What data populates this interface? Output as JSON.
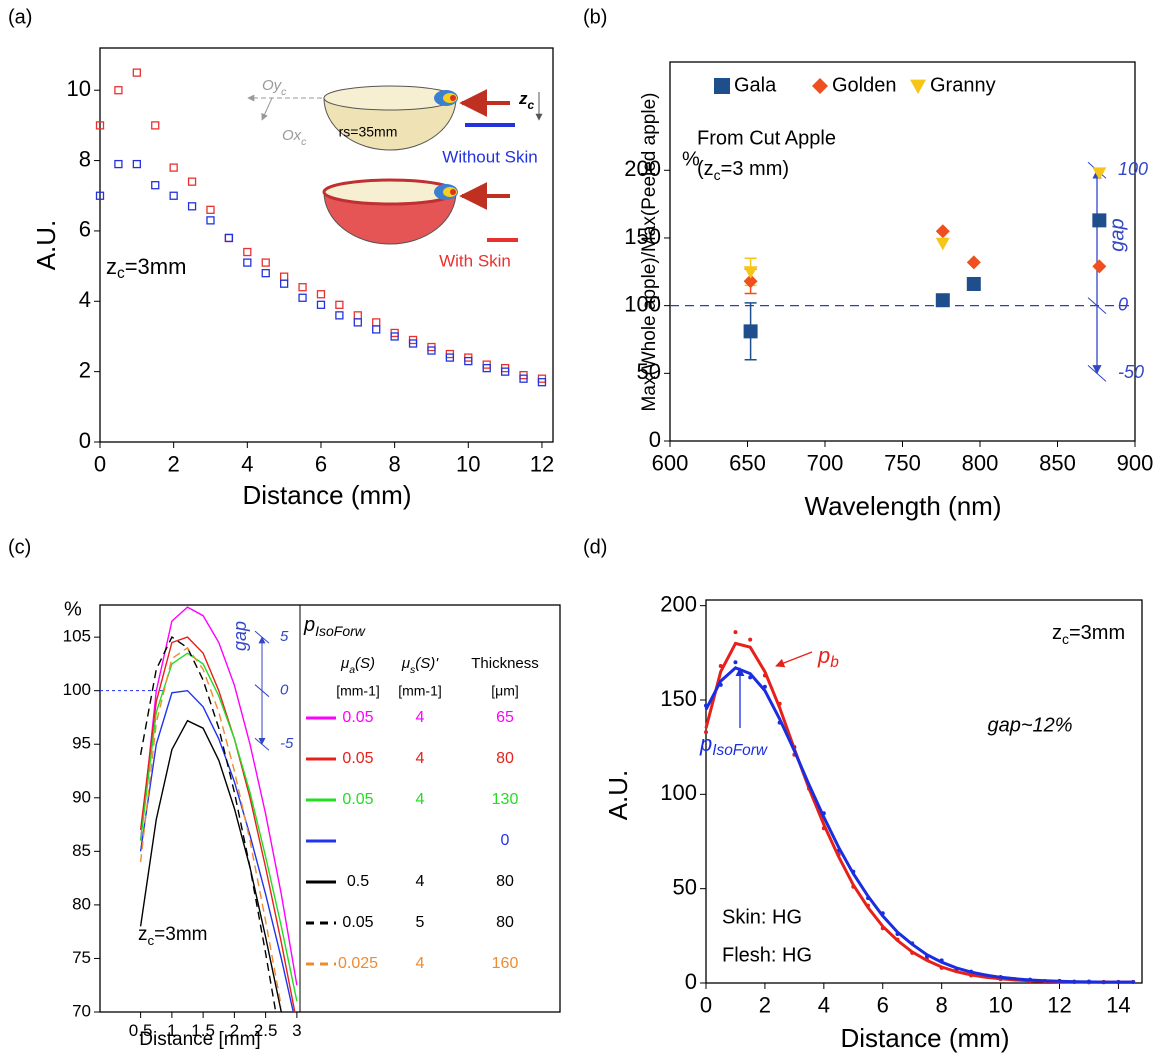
{
  "chart_data": [
    {
      "type": "scatter",
      "panel_label": "(a)",
      "xlabel": "Distance (mm)",
      "ylabel": "A.U.",
      "x": [
        0,
        0.5,
        1,
        1.5,
        2,
        2.5,
        3,
        3.5,
        4,
        4.5,
        5,
        5.5,
        6,
        6.5,
        7,
        7.5,
        8,
        8.5,
        9,
        9.5,
        10,
        10.5,
        11,
        11.5,
        12
      ],
      "series": [
        {
          "name": "With Skin",
          "color": "#e8312f",
          "values": [
            9.0,
            10.0,
            10.5,
            9.0,
            7.8,
            7.4,
            6.6,
            5.8,
            5.4,
            5.1,
            4.7,
            4.4,
            4.2,
            3.9,
            3.6,
            3.4,
            3.1,
            2.9,
            2.7,
            2.5,
            2.4,
            2.2,
            2.1,
            1.9,
            1.8
          ]
        },
        {
          "name": "Without Skin",
          "color": "#2233dd",
          "values": [
            7.0,
            7.9,
            7.9,
            7.3,
            7.0,
            6.7,
            6.3,
            5.8,
            5.1,
            4.8,
            4.5,
            4.1,
            3.9,
            3.6,
            3.4,
            3.2,
            3.0,
            2.8,
            2.6,
            2.4,
            2.3,
            2.1,
            2.0,
            1.8,
            1.7
          ]
        }
      ],
      "xlim": [
        0,
        12.3
      ],
      "ylim": [
        0,
        11.2
      ],
      "xticks": [
        0,
        2,
        4,
        6,
        8,
        10,
        12
      ],
      "yticks": [
        0,
        2,
        4,
        6,
        8,
        10
      ],
      "annotations": [
        "zc=3mm",
        "rs=35mm",
        "Oyc",
        "Oxc",
        "zc"
      ]
    },
    {
      "type": "scatter",
      "panel_label": "(b)",
      "xlabel": "Wavelength (nm)",
      "ylabel": "Max(Whole apple)/Max(Peeled apple)",
      "y2label": "gap",
      "x": [
        652,
        776,
        796,
        877
      ],
      "series": [
        {
          "name": "Gala",
          "color": "#1f4e8c",
          "marker": "square",
          "values": [
            81,
            104,
            116,
            163
          ],
          "errors": [
            21,
            null,
            null,
            null
          ]
        },
        {
          "name": "Golden",
          "color": "#f04e1f",
          "marker": "diamond",
          "values": [
            118,
            155,
            132,
            129
          ],
          "errors": [
            9,
            null,
            null,
            null
          ]
        },
        {
          "name": "Granny",
          "color": "#f5c518",
          "marker": "triangle-down",
          "values": [
            125,
            146,
            null,
            198
          ],
          "errors": [
            10,
            null,
            null,
            null
          ]
        }
      ],
      "xlim": [
        600,
        900
      ],
      "ylim": [
        0,
        280
      ],
      "xticks": [
        600,
        650,
        700,
        750,
        800,
        850,
        900
      ],
      "yticks": [
        0,
        50,
        100,
        150,
        200
      ],
      "y2lim": [
        -100,
        180
      ],
      "y2ticks": [
        -50,
        0,
        100
      ],
      "reference_line": 100,
      "annotations": [
        "%",
        "From Cut Apple",
        "(zc=3 mm)"
      ]
    },
    {
      "type": "line",
      "panel_label": "(c)",
      "xlabel": "Distance [mm]",
      "ylabel": "%",
      "y2label": "gap",
      "x": [
        0.5,
        0.75,
        1,
        1.25,
        1.5,
        1.75,
        2,
        2.25,
        2.5,
        2.75,
        3
      ],
      "series": [
        {
          "color": "#ff00ff",
          "dash": false,
          "mu_a": 0.05,
          "mu_s": 4,
          "thickness": 65,
          "values": [
            86,
            100,
            106.5,
            107.8,
            107,
            104.5,
            100.5,
            95,
            88.5,
            81,
            72.5
          ]
        },
        {
          "color": "#e8201a",
          "dash": false,
          "mu_a": 0.05,
          "mu_s": 4,
          "thickness": 80,
          "values": [
            87,
            99,
            104.5,
            105,
            103.5,
            100,
            95.5,
            90,
            83.5,
            76.5,
            69
          ]
        },
        {
          "color": "#22dd22",
          "dash": false,
          "mu_a": 0.05,
          "mu_s": 4,
          "thickness": 130,
          "values": [
            86,
            98,
            102.5,
            103.5,
            102.5,
            99.5,
            95.5,
            90.5,
            84.5,
            78,
            71
          ]
        },
        {
          "color": "#2233ee",
          "dash": false,
          "mu_a": null,
          "mu_s": null,
          "thickness": 0,
          "values": [
            85,
            95,
            99.8,
            100,
            98.5,
            95.5,
            91.5,
            86.5,
            81,
            75,
            68.5
          ]
        },
        {
          "color": "#000000",
          "dash": false,
          "mu_a": 0.5,
          "mu_s": 4,
          "thickness": 80,
          "values": [
            78,
            88,
            94.5,
            97.2,
            96.5,
            93.5,
            89,
            83.5,
            77,
            70,
            null
          ]
        },
        {
          "color": "#000000",
          "dash": true,
          "mu_a": 0.05,
          "mu_s": 5,
          "thickness": 80,
          "values": [
            94,
            102,
            105,
            104,
            101,
            96.5,
            90.5,
            83.5,
            75.5,
            67,
            null
          ]
        },
        {
          "color": "#f08a30",
          "dash": true,
          "mu_a": 0.025,
          "mu_s": 4,
          "thickness": 160,
          "values": [
            84,
            97,
            103,
            104,
            102,
            98,
            92.5,
            86,
            78.5,
            70.5,
            null
          ]
        }
      ],
      "legend_title": "pIsoForw",
      "columns": [
        "μa(S)",
        "μs(S)'",
        "Thickness"
      ],
      "units": [
        "[mm-1]",
        "[mm-1]",
        "[μm]"
      ],
      "xlim": [
        -0.15,
        3.05
      ],
      "ylim": [
        70,
        108
      ],
      "xticks": [
        0.5,
        1,
        1.5,
        2,
        2.5,
        3
      ],
      "yticks": [
        70,
        75,
        80,
        85,
        90,
        95,
        100,
        105
      ],
      "y2lim": [
        -30,
        8
      ],
      "y2ticks": [
        -5,
        0,
        5
      ],
      "reference_line": 100,
      "annotations": [
        "zc=3mm"
      ]
    },
    {
      "type": "line",
      "panel_label": "(d)",
      "xlabel": "Distance (mm)",
      "ylabel": "A.U.",
      "x": [
        0,
        0.5,
        1,
        1.5,
        2,
        2.5,
        3,
        3.5,
        4,
        4.5,
        5,
        5.5,
        6,
        6.5,
        7,
        7.5,
        8,
        8.5,
        9,
        9.5,
        10,
        10.5,
        11,
        11.5,
        12,
        12.5,
        13,
        13.5,
        14,
        14.5
      ],
      "series": [
        {
          "name": "pb",
          "color": "#e8201a",
          "values": [
            135,
            165,
            180,
            178,
            165,
            146,
            124,
            103,
            84,
            67,
            52,
            40,
            30,
            22.5,
            16.5,
            12,
            8.5,
            6,
            4.3,
            3,
            2.2,
            1.6,
            1.2,
            0.9,
            0.7,
            0.6,
            0.5,
            0.5,
            0.5,
            0.5
          ],
          "measured": [
            133,
            168,
            186,
            182,
            163,
            148,
            121,
            104,
            82,
            68,
            51,
            41,
            29,
            23,
            16,
            12.5,
            8,
            6.5,
            4,
            3.5,
            2,
            1.8,
            1,
            1,
            0.5,
            0.8,
            0.3,
            0.6,
            0.4,
            0.5
          ]
        },
        {
          "name": "pIsoForw",
          "color": "#1a2ee0",
          "values": [
            145,
            160,
            167,
            164,
            155,
            140,
            123,
            105,
            88,
            72,
            58,
            46,
            35.5,
            27,
            20.5,
            15,
            11,
            8,
            5.8,
            4.2,
            3,
            2.2,
            1.6,
            1.2,
            0.9,
            0.7,
            0.6,
            0.5,
            0.5,
            0.5
          ],
          "measured": [
            147,
            158,
            170,
            162,
            157,
            138,
            125,
            103,
            90,
            70,
            59,
            45,
            37,
            26,
            21,
            14,
            12,
            7.5,
            6,
            4,
            3.2,
            2,
            1.8,
            1,
            1.1,
            0.5,
            0.8,
            0.4,
            0.6,
            0.5
          ]
        }
      ],
      "xlim": [
        0,
        14.8
      ],
      "ylim": [
        0,
        203
      ],
      "xticks": [
        0,
        2,
        4,
        6,
        8,
        10,
        12,
        14
      ],
      "yticks": [
        0,
        50,
        100,
        150,
        200
      ],
      "annotations": [
        "zc=3mm",
        "gap~12%",
        "Skin: HG",
        "Flesh: HG"
      ]
    }
  ]
}
